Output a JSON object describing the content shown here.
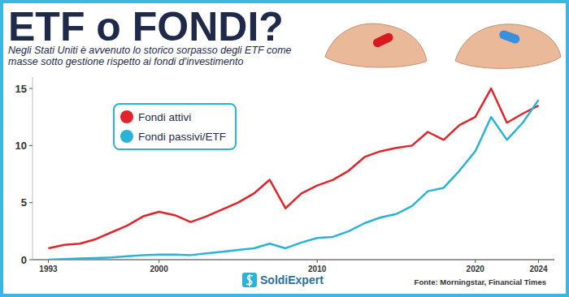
{
  "chart_data": {
    "type": "line",
    "title": "ETF o FONDI?",
    "subtitle": "Negli Stati Uniti è avvenuto lo storico sorpasso degli ETF come masse sotto gestione rispetto ai fondi d'investimento",
    "annotations": [
      "Fonte: Morningstar, Financial Times",
      "SoldiExpert"
    ],
    "x": [
      1993,
      1994,
      1995,
      1996,
      1997,
      1998,
      1999,
      2000,
      2001,
      2002,
      2003,
      2004,
      2005,
      2006,
      2007,
      2008,
      2009,
      2010,
      2011,
      2012,
      2013,
      2014,
      2015,
      2016,
      2017,
      2018,
      2019,
      2020,
      2021,
      2022,
      2023,
      2024
    ],
    "series": [
      {
        "name": "Fondi attivi",
        "color": "#e0242b",
        "values": [
          1.0,
          1.3,
          1.4,
          1.8,
          2.4,
          3.0,
          3.8,
          4.2,
          3.9,
          3.3,
          3.8,
          4.4,
          5.0,
          5.8,
          7.0,
          4.5,
          5.8,
          6.5,
          7.0,
          7.8,
          9.0,
          9.5,
          9.8,
          10.0,
          11.2,
          10.5,
          11.8,
          12.5,
          15.0,
          12.0,
          12.8,
          13.5
        ]
      },
      {
        "name": "Fondi passivi/ETF",
        "color": "#2ab3d6",
        "values": [
          0.0,
          0.05,
          0.1,
          0.15,
          0.2,
          0.3,
          0.4,
          0.45,
          0.45,
          0.4,
          0.55,
          0.7,
          0.85,
          1.0,
          1.4,
          1.0,
          1.5,
          1.9,
          2.0,
          2.5,
          3.2,
          3.7,
          4.0,
          4.7,
          6.0,
          6.3,
          7.8,
          9.5,
          12.5,
          10.5,
          12.0,
          14.0
        ]
      }
    ],
    "xlim": [
      1992,
      2025
    ],
    "ylim": [
      0,
      16
    ],
    "xticks": [
      1993,
      2000,
      2010,
      2020,
      2024
    ],
    "yticks": [
      0,
      5,
      10,
      15
    ],
    "grid": false,
    "legend": "upper left"
  }
}
